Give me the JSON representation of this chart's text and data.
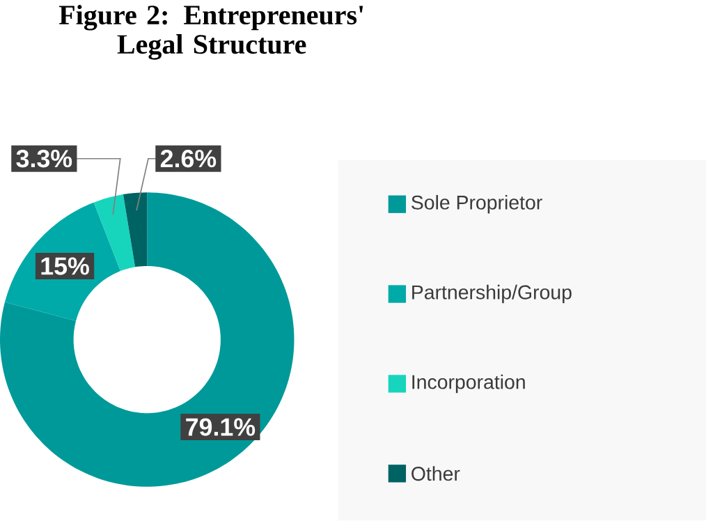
{
  "chart_data": {
    "type": "donut",
    "title": "Figure 2: Entrepreneurs' Legal Structure",
    "categories": [
      "Sole Proprietor",
      "Partnership/Group",
      "Incorporation",
      "Other"
    ],
    "values": [
      79.1,
      15,
      3.3,
      2.6
    ],
    "colors": [
      "#009999",
      "#00aaa8",
      "#17d4bd",
      "#006363"
    ],
    "value_labels": [
      "79.1%",
      "15%",
      "3.3%",
      "2.6%"
    ],
    "legend": "right"
  }
}
